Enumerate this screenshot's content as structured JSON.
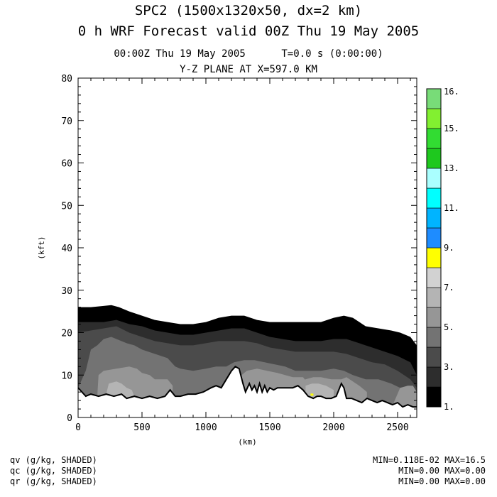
{
  "header": {
    "title": "SPC2 (1500x1320x50, dx=2 km)",
    "subtitle": "0 h WRF Forecast valid 00Z Thu 19 May 2005",
    "time_line": "00:00Z Thu 19 May 2005      T=0.0 s (0:00:00)",
    "plane_line": "Y-Z PLANE AT X=597.0 KM"
  },
  "footer": {
    "fields": [
      {
        "label": "qv (g/kg, SHADED)",
        "stats": "MIN=0.118E-02 MAX=16.5"
      },
      {
        "label": "qc (g/kg, SHADED)",
        "stats": "MIN=0.00 MAX=0.00"
      },
      {
        "label": "qr (g/kg, SHADED)",
        "stats": "MIN=0.00 MAX=0.00"
      }
    ]
  },
  "chart_data": {
    "type": "heatmap",
    "title": "Y-Z PLANE AT X=597.0 KM",
    "xlabel": "(km)",
    "ylabel": "(kft)",
    "xlim": [
      0,
      2650
    ],
    "ylim": [
      0,
      80
    ],
    "xticks": [
      0,
      500,
      1000,
      1500,
      2000,
      2500
    ],
    "yticks": [
      0,
      10,
      20,
      30,
      40,
      50,
      60,
      70,
      80
    ],
    "colorbar": {
      "labels": [
        "1.",
        "3.",
        "5.",
        "7.",
        "9.",
        "11.",
        "13.",
        "15.",
        "16."
      ],
      "colors": [
        "#000000",
        "#2d2d2d",
        "#4b4b4b",
        "#737373",
        "#969696",
        "#b4b4b4",
        "#d2d2d2",
        "#ffff00",
        "#1e8cff",
        "#00b4ff",
        "#00ffff",
        "#aaffff",
        "#1ec81e",
        "#32dc32",
        "#82f030",
        "#78dc78"
      ]
    },
    "terrain_kft": {
      "x": [
        0,
        60,
        100,
        160,
        220,
        280,
        340,
        380,
        440,
        500,
        560,
        620,
        680,
        720,
        760,
        800,
        860,
        920,
        980,
        1040,
        1080,
        1120,
        1160,
        1200,
        1230,
        1260,
        1290,
        1310,
        1340,
        1360,
        1380,
        1400,
        1420,
        1440,
        1460,
        1480,
        1500,
        1530,
        1560,
        1600,
        1640,
        1680,
        1720,
        1760,
        1800,
        1840,
        1870,
        1900,
        1940,
        1980,
        2020,
        2060,
        2080,
        2100,
        2140,
        2180,
        2220,
        2260,
        2300,
        2340,
        2380,
        2420,
        2460,
        2500,
        2540,
        2580,
        2620,
        2650
      ],
      "y": [
        7,
        5,
        5.5,
        5,
        5.5,
        5,
        5.5,
        4.5,
        5,
        4.5,
        5,
        4.5,
        5,
        6.5,
        5,
        5,
        5.5,
        5.5,
        6,
        7,
        7.5,
        7,
        9,
        11,
        12,
        11.5,
        8,
        6,
        8,
        6.5,
        7.5,
        6,
        8,
        6,
        7.5,
        6,
        7,
        6.5,
        7,
        7,
        7,
        7,
        7.5,
        6.5,
        5,
        4.5,
        5,
        5,
        4.5,
        4.5,
        5,
        8,
        7,
        4.5,
        4.5,
        4,
        3.5,
        4.5,
        4,
        3.5,
        4,
        3.5,
        3,
        3.5,
        2.5,
        3,
        2.5,
        2.5
      ]
    },
    "top_kft": {
      "x": [
        0,
        100,
        200,
        260,
        320,
        400,
        500,
        600,
        700,
        800,
        900,
        1000,
        1100,
        1200,
        1300,
        1400,
        1500,
        1600,
        1700,
        1800,
        1900,
        1950,
        2000,
        2080,
        2150,
        2250,
        2350,
        2450,
        2520,
        2600,
        2650
      ],
      "y": [
        26,
        26,
        26.3,
        26.5,
        26,
        25,
        24,
        23,
        22.5,
        22,
        22,
        22.5,
        23.5,
        24,
        24,
        23,
        22.5,
        22.5,
        22.5,
        22.5,
        22.5,
        23,
        23.5,
        24,
        23.5,
        21.5,
        21,
        20.5,
        20,
        19,
        17
      ]
    },
    "bands": [
      {
        "level": "1.",
        "x": [
          0,
          100,
          200,
          300,
          400,
          500,
          600,
          700,
          800,
          900,
          1000,
          1100,
          1200,
          1300,
          1400,
          1500,
          1600,
          1700,
          1800,
          1900,
          2000,
          2100,
          2200,
          2300,
          2400,
          2500,
          2600,
          2650
        ],
        "y": [
          22.5,
          22.5,
          22.5,
          23,
          22,
          21.5,
          20.5,
          20,
          19.5,
          19.5,
          20,
          20.5,
          21,
          21,
          20,
          19,
          18.5,
          18,
          18,
          18,
          18.5,
          18.5,
          17.5,
          16.5,
          15.5,
          14.5,
          13,
          10
        ]
      },
      {
        "level": "3.",
        "x": [
          0,
          100,
          200,
          300,
          400,
          500,
          600,
          700,
          800,
          900,
          1000,
          1100,
          1200,
          1300,
          1400,
          1500,
          1600,
          1700,
          1800,
          1900,
          2000,
          2100,
          2200,
          2300,
          2400,
          2500,
          2600,
          2650
        ],
        "y": [
          20,
          20.5,
          21,
          21.5,
          20,
          19,
          18,
          17.5,
          17,
          17,
          17.5,
          18,
          18,
          18,
          17.5,
          16.5,
          16,
          15.5,
          15.5,
          15.5,
          15.5,
          15,
          14,
          13,
          12.5,
          11,
          9,
          7
        ]
      },
      {
        "level": "5.",
        "x": [
          0,
          60,
          100,
          150,
          200,
          260,
          300,
          380,
          440,
          500,
          600,
          700,
          760,
          800,
          900,
          1000,
          1080,
          1160,
          1220,
          1300,
          1380,
          1460,
          1540,
          1620,
          1700,
          1800,
          1900,
          2000,
          2080,
          2150,
          2250,
          2350,
          2450,
          2520,
          2600,
          2650
        ],
        "y": [
          7,
          11,
          16,
          17,
          18.5,
          19,
          18.5,
          17.5,
          17,
          16,
          15,
          14,
          12,
          11.5,
          11,
          11.5,
          12,
          12,
          13,
          13.5,
          13.5,
          13,
          12.5,
          12,
          11,
          11,
          11,
          11.5,
          11,
          10,
          9,
          9,
          8,
          7,
          6.5,
          5
        ]
      },
      {
        "level": "5b",
        "x": [
          150,
          160,
          200,
          300,
          400,
          460,
          500,
          560,
          600,
          700,
          740
        ],
        "y": [
          5,
          10,
          11,
          11.5,
          12,
          11.5,
          10.5,
          10,
          9,
          9,
          7.5
        ]
      },
      {
        "level": "5c",
        "x": [
          1280,
          1320,
          1400,
          1480,
          1560,
          1620,
          1680,
          1760,
          1800
        ],
        "y": [
          10,
          11,
          11.5,
          11,
          10.5,
          10,
          9.5,
          9.5,
          8
        ]
      },
      {
        "level": "5d",
        "x": [
          1720,
          1780,
          1840,
          1900,
          1980,
          2060,
          2100,
          2150,
          2200,
          2260
        ],
        "y": [
          8,
          9,
          9.5,
          9.5,
          9,
          9,
          9.5,
          8.5,
          7.5,
          6
        ]
      },
      {
        "level": "5e",
        "x": [
          2470,
          2520,
          2580,
          2620,
          2650
        ],
        "y": [
          3.5,
          7,
          7.5,
          7.5,
          6
        ]
      },
      {
        "level": "7.",
        "x": [
          220,
          240,
          300,
          340,
          380,
          420,
          440
        ],
        "y": [
          5.5,
          8,
          8.5,
          8,
          7,
          6.5,
          5
        ]
      },
      {
        "level": "7b",
        "x": [
          1780,
          1830,
          1880,
          1940,
          2000
        ],
        "y": [
          7.5,
          8,
          8,
          7.5,
          6.5
        ]
      }
    ],
    "yellow_spot": {
      "x": 1830,
      "y": 5.3
    }
  }
}
